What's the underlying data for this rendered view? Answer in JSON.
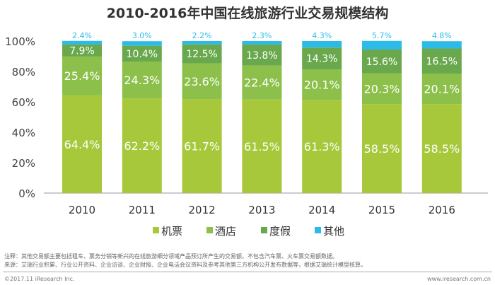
{
  "chart_data": {
    "type": "bar",
    "stacked": true,
    "title": "2010-2016年中国在线旅游行业交易规模结构",
    "categories": [
      "2010",
      "2011",
      "2012",
      "2013",
      "2014",
      "2015",
      "2016"
    ],
    "series": [
      {
        "name": "机票",
        "values": [
          64.4,
          62.2,
          61.7,
          61.5,
          61.3,
          58.5,
          58.5
        ],
        "labels": [
          "64.4%",
          "62.2%",
          "61.7%",
          "61.5%",
          "61.3%",
          "58.5%",
          "58.5%"
        ],
        "color": "#a6c83a"
      },
      {
        "name": "酒店",
        "values": [
          25.4,
          24.3,
          23.6,
          22.4,
          20.1,
          20.3,
          20.1
        ],
        "labels": [
          "25.4%",
          "24.3%",
          "23.6%",
          "22.4%",
          "20.1%",
          "20.3%",
          "20.1%"
        ],
        "color": "#8cc04a"
      },
      {
        "name": "度假",
        "values": [
          7.9,
          10.4,
          12.5,
          13.8,
          14.3,
          15.6,
          16.5
        ],
        "labels": [
          "7.9%",
          "10.4%",
          "12.5%",
          "13.8%",
          "14.3%",
          "15.6%",
          "16.5%"
        ],
        "color": "#69a84c"
      },
      {
        "name": "其他",
        "values": [
          2.4,
          3.0,
          2.2,
          2.3,
          4.3,
          5.7,
          4.8
        ],
        "labels": [
          "2.4%",
          "3.0%",
          "2.2%",
          "2.3%",
          "4.3%",
          "5.7%",
          "4.8%"
        ],
        "color": "#2cbbe6"
      }
    ],
    "ylim": [
      0,
      100
    ],
    "yticks": [
      "0%",
      "20%",
      "40%",
      "60%",
      "80%",
      "100%"
    ],
    "grid": false,
    "legend": "bottom"
  },
  "notes": {
    "note": "注释：其他交易额主要包括租车、票务分销等新兴的在线旅游细分领域产品预订所产生的交易额，不包含汽车票、火车票交易额数据。",
    "source": "来源：艾瑞行业积累、行业公开资料、企业访谈、企业财报、企业电话会议资料及参考其他第三方机构公开发布数据等，根据艾瑞统计模型核算。",
    "copyright": "©2017.11 iResearch Inc.",
    "website": "www.iresearch.com.cn"
  }
}
